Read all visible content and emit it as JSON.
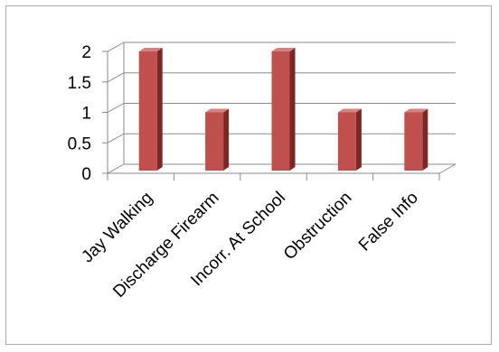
{
  "chart_data": {
    "type": "bar",
    "categories": [
      "Jay Walking",
      "Discharge Firearm",
      "Incorr. At School",
      "Obstruction",
      "False Info"
    ],
    "values": [
      2,
      1,
      2,
      1,
      1
    ],
    "title": "",
    "xlabel": "",
    "ylabel": "",
    "ylim": [
      0,
      2
    ],
    "yticks": [
      "0",
      "0.5",
      "1",
      "1.5",
      "2"
    ],
    "grid": true,
    "legend": "none",
    "bar_color": "#c0504d",
    "bar_side_color": "#7e2623",
    "bar_top_color": "#d9807d",
    "style": "3d-column"
  }
}
